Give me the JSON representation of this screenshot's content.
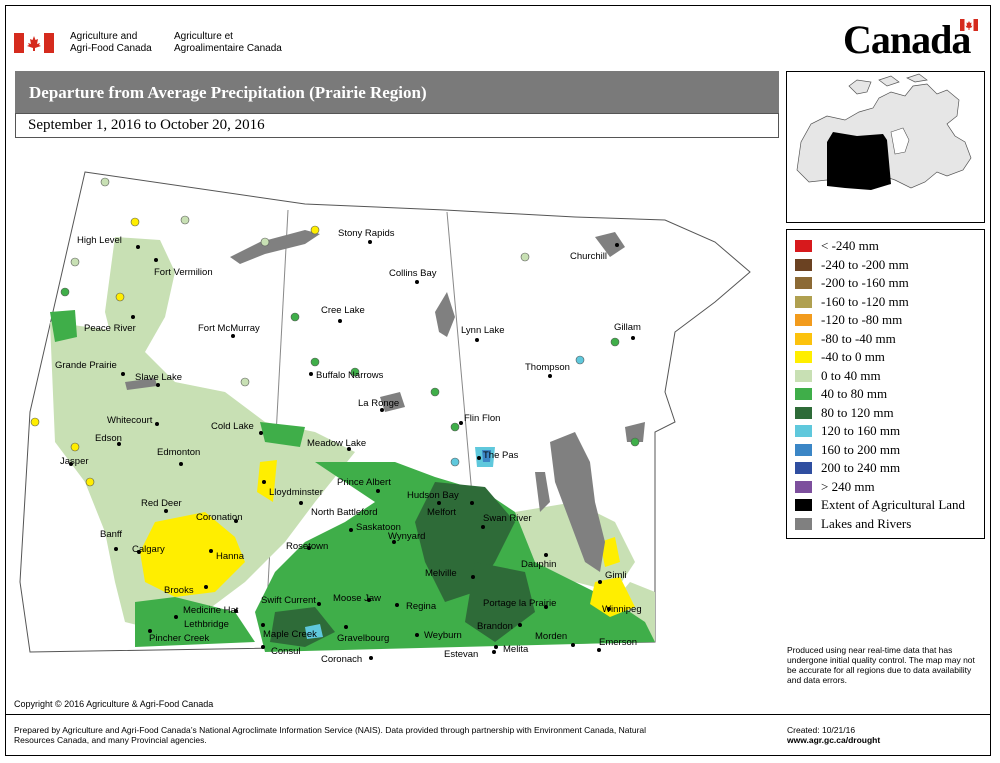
{
  "header": {
    "dept_en_line1": "Agriculture and",
    "dept_en_line2": "Agri-Food Canada",
    "dept_fr_line1": "Agriculture et",
    "dept_fr_line2": "Agroalimentaire Canada",
    "wordmark": "Canada",
    "flag_color": "#d52b1e"
  },
  "title": "Departure from Average Precipitation (Prairie Region)",
  "date_range": "September 1, 2016 to October 20, 2016",
  "legend": [
    {
      "label": "< -240 mm",
      "color": "#d7191c"
    },
    {
      "label": "-240 to -200 mm",
      "color": "#6b4222"
    },
    {
      "label": "-200 to -160 mm",
      "color": "#8c6a35"
    },
    {
      "label": "-160 to -120 mm",
      "color": "#b0a050"
    },
    {
      "label": "-120 to -80 mm",
      "color": "#f29b1d"
    },
    {
      "label": "-80 to -40 mm",
      "color": "#fcc20d"
    },
    {
      "label": "-40 to 0 mm",
      "color": "#ffee00"
    },
    {
      "label": "0 to 40 mm",
      "color": "#c8e0b4"
    },
    {
      "label": "40 to 80 mm",
      "color": "#3fae49"
    },
    {
      "label": "80 to 120 mm",
      "color": "#2e6b38"
    },
    {
      "label": "120 to 160 mm",
      "color": "#5fc8dc"
    },
    {
      "label": "160 to 200 mm",
      "color": "#3b86c6"
    },
    {
      "label": "200 to 240 mm",
      "color": "#2f4ea0"
    },
    {
      "label": "> 240 mm",
      "color": "#7d4f9d"
    },
    {
      "label": "Extent of Agricultural Land",
      "color": "#000000"
    },
    {
      "label": "Lakes and Rivers",
      "color": "#808080"
    }
  ],
  "cities": [
    "High Level",
    "Fort Vermilion",
    "Stony Rapids",
    "Churchill",
    "Collins Bay",
    "Peace River",
    "Fort McMurray",
    "Cree Lake",
    "Lynn Lake",
    "Gillam",
    "Grande Prairie",
    "Thompson",
    "Slave Lake",
    "Buffalo Narrows",
    "La Ronge",
    "Whitecourt",
    "Flin Flon",
    "Edson",
    "Cold Lake",
    "Meadow Lake",
    "Jasper",
    "Edmonton",
    "The Pas",
    "Lloydminster",
    "Prince Albert",
    "Hudson Bay",
    "Red Deer",
    "North Battleford",
    "Melfort",
    "Swan River",
    "Coronation",
    "Saskatoon",
    "Banff",
    "Rosetown",
    "Wynyard",
    "Calgary",
    "Hanna",
    "Dauphin",
    "Gimli",
    "Melville",
    "Brooks",
    "Swift Current",
    "Moose Jaw",
    "Regina",
    "Portage la Prairie",
    "Winnipeg",
    "Medicine Hat",
    "Lethbridge",
    "Maple Creek",
    "Gravelbourg",
    "Weyburn",
    "Brandon",
    "Morden",
    "Emerson",
    "Pincher Creek",
    "Consul",
    "Estevan",
    "Melita",
    "Coronach"
  ],
  "note": "Produced using near real-time data that has undergone initial quality control.  The map may not be accurate for all regions due to data availability and data errors.",
  "copyright": "Copyright © 2016 Agriculture & Agri-Food Canada",
  "prepared": "Prepared by Agriculture and Agri-Food Canada’s National Agroclimate Information Service (NAIS).   Data provided through partnership with Environment Canada, Natural Resources Canada, and many Provincial agencies.",
  "created": "Created: 10/21/16",
  "url": "www.agr.gc.ca/drought"
}
